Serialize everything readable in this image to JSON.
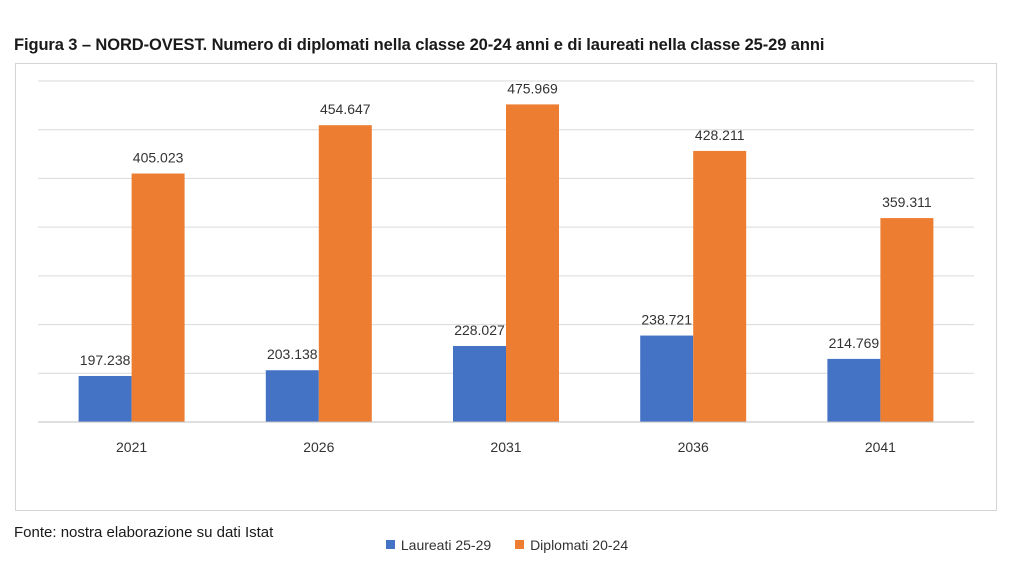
{
  "title": "Figura 3 – NORD-OVEST. Numero di diplomati nella classe 20-24 anni e di laureati nella classe 25-29 anni",
  "source": "Fonte: nostra elaborazione su dati Istat",
  "chart_data": {
    "type": "bar",
    "title": "Figura 3 – NORD-OVEST. Numero di diplomati nella classe 20-24 anni e di laureati nella classe 25-29 anni",
    "xlabel": "",
    "ylabel": "",
    "categories": [
      "2021",
      "2026",
      "2031",
      "2036",
      "2041"
    ],
    "series": [
      {
        "name": "Laureati 25-29",
        "color": "#4472c4",
        "values": [
          197238,
          203138,
          228027,
          238721,
          214769
        ],
        "labels": [
          "197.238",
          "203.138",
          "228.027",
          "238.721",
          "214.769"
        ]
      },
      {
        "name": "Diplomati 20-24",
        "color": "#ed7d31",
        "values": [
          405023,
          454647,
          475969,
          428211,
          359311
        ],
        "labels": [
          "405.023",
          "454.647",
          "475.969",
          "428.211",
          "359.311"
        ]
      }
    ],
    "ylim": [
      150000,
      500000
    ],
    "grid": true,
    "y_tick_labels_shown": false,
    "legend_position": "bottom"
  }
}
